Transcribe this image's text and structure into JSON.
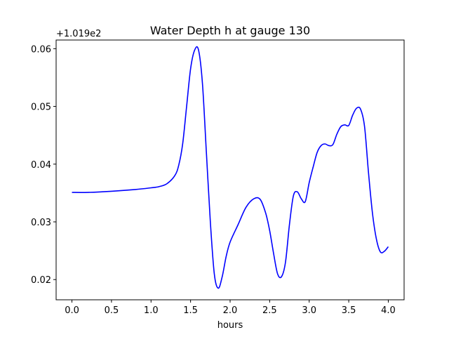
{
  "chart_data": {
    "type": "line",
    "title": "Water Depth h at gauge 130",
    "xlabel": "hours",
    "ylabel": "",
    "offset_label": "+1.019e2",
    "xlim": [
      -0.2,
      4.2
    ],
    "ylim": [
      0.0165,
      0.0615
    ],
    "xticks": [
      0.0,
      0.5,
      1.0,
      1.5,
      2.0,
      2.5,
      3.0,
      3.5,
      4.0
    ],
    "xtick_labels": [
      "0.0",
      "0.5",
      "1.0",
      "1.5",
      "2.0",
      "2.5",
      "3.0",
      "3.5",
      "4.0"
    ],
    "yticks": [
      0.02,
      0.03,
      0.04,
      0.05,
      0.06
    ],
    "ytick_labels": [
      "0.02",
      "0.03",
      "0.04",
      "0.05",
      "0.06"
    ],
    "grid": false,
    "series": [
      {
        "color": "#0000ff",
        "x": [
          0.0,
          0.2,
          0.5,
          0.8,
          1.0,
          1.1,
          1.2,
          1.3,
          1.35,
          1.4,
          1.45,
          1.5,
          1.55,
          1.6,
          1.65,
          1.7,
          1.75,
          1.8,
          1.85,
          1.9,
          1.95,
          2.0,
          2.1,
          2.2,
          2.3,
          2.38,
          2.45,
          2.5,
          2.55,
          2.6,
          2.65,
          2.7,
          2.75,
          2.8,
          2.85,
          2.9,
          2.95,
          3.0,
          3.05,
          3.1,
          3.15,
          3.2,
          3.25,
          3.3,
          3.35,
          3.4,
          3.45,
          3.5,
          3.55,
          3.6,
          3.65,
          3.7,
          3.75,
          3.8,
          3.85,
          3.9,
          3.95,
          4.0
        ],
        "y": [
          0.0351,
          0.0351,
          0.0353,
          0.0356,
          0.0359,
          0.0361,
          0.0366,
          0.038,
          0.0398,
          0.0435,
          0.05,
          0.0565,
          0.0597,
          0.0598,
          0.054,
          0.042,
          0.03,
          0.021,
          0.0185,
          0.0205,
          0.024,
          0.0265,
          0.0295,
          0.0325,
          0.034,
          0.0339,
          0.0315,
          0.0285,
          0.0245,
          0.021,
          0.0205,
          0.023,
          0.0295,
          0.0345,
          0.0352,
          0.034,
          0.0335,
          0.0368,
          0.0395,
          0.042,
          0.0432,
          0.0435,
          0.0432,
          0.0434,
          0.0452,
          0.0465,
          0.0468,
          0.0467,
          0.0485,
          0.0497,
          0.0495,
          0.0465,
          0.0385,
          0.0315,
          0.027,
          0.0248,
          0.0249,
          0.0257
        ]
      }
    ]
  }
}
